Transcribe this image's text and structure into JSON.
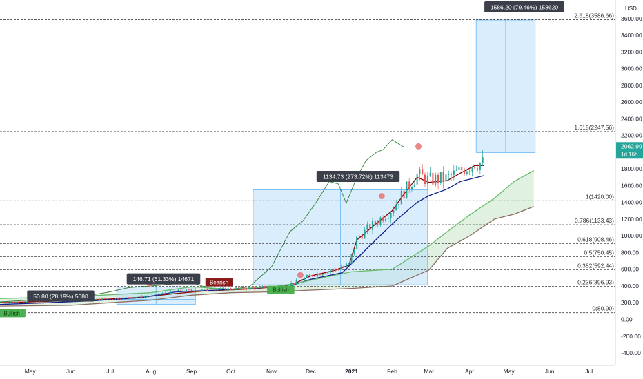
{
  "currency": "USD",
  "last_price": "2062.99",
  "countdown": "1d 16h",
  "colors": {
    "up": "#26a69a",
    "down": "#ef5350",
    "kijun": "#8b0000",
    "tenkan": "#0d1f8c",
    "lagging": "#2e7d32",
    "cloud": "#c8e6c9",
    "spanA": "#66bb6a",
    "spanB": "#8d6e63",
    "fib": "#444444",
    "range_fill": "#bbdefb",
    "range_line": "#64b5f6",
    "price_line": "#26a69a"
  },
  "chart_data": {
    "type": "candlestick",
    "y_ticks": [
      "3600.00",
      "3400.00",
      "3200.00",
      "3000.00",
      "2800.00",
      "2600.00",
      "2400.00",
      "2200.00",
      "2000.00",
      "1800.00",
      "1600.00",
      "1400.00",
      "1200.00",
      "1000.00",
      "800.00",
      "600.00",
      "400.00",
      "200.00",
      "0.00",
      "-200.00",
      "-400.00"
    ],
    "ylim": [
      -500,
      3800
    ],
    "x_ticks": [
      "May",
      "Jun",
      "Jul",
      "Aug",
      "Sep",
      "Oct",
      "Nov",
      "Dec",
      "2021",
      "Feb",
      "Mar",
      "Apr",
      "May",
      "Jun",
      "Jul"
    ],
    "x_tick_dates": [
      "2020-05-01",
      "2020-06-01",
      "2020-07-01",
      "2020-08-01",
      "2020-09-01",
      "2020-10-01",
      "2020-11-01",
      "2020-12-01",
      "2021-01-01",
      "2021-02-01",
      "2021-03-01",
      "2021-04-01",
      "2021-05-01",
      "2021-06-01",
      "2021-07-01"
    ],
    "xlim": [
      "2020-04-08",
      "2021-07-18"
    ],
    "fib_levels": [
      {
        "label": "2.618(3586.66)",
        "value": 3586.66
      },
      {
        "label": "1.618(2247.56)",
        "value": 2247.56
      },
      {
        "label": "1(1420.00)",
        "value": 1420.0
      },
      {
        "label": "0.786(1133.43)",
        "value": 1133.43
      },
      {
        "label": "0.618(908.46)",
        "value": 908.46
      },
      {
        "label": "0.5(750.45)",
        "value": 750.45
      },
      {
        "label": "0.382(592.44)",
        "value": 592.44
      },
      {
        "label": "0.236(396.93)",
        "value": 396.93
      },
      {
        "label": "0(80.90)",
        "value": 80.9
      }
    ],
    "price_ranges": [
      {
        "label": "50.80 (28.19%) 5080",
        "start": "2020-07-06",
        "end": "2020-09-04",
        "low": 180,
        "high": 231
      },
      {
        "label": "146.71 (61.33%) 14671",
        "start": "2020-07-06",
        "end": "2020-09-04",
        "low": 239,
        "high": 386
      },
      {
        "label": "1134.73 (273.72%) 113473",
        "start": "2020-10-18",
        "end": "2021-02-28",
        "low": 415,
        "high": 1550
      },
      {
        "label": "1586.20 (79.46%) 158620",
        "start": "2021-04-06",
        "end": "2021-05-21",
        "low": 1996,
        "high": 3582
      }
    ],
    "signals": [
      {
        "label": "Bullish",
        "date": "2020-04-17",
        "value": 75,
        "kind": "bull"
      },
      {
        "label": "Bearish",
        "date": "2020-09-22",
        "value": 445,
        "kind": "bear"
      },
      {
        "label": "Bullish",
        "date": "2020-11-08",
        "value": 355,
        "kind": "bull"
      }
    ],
    "markers": [
      {
        "date": "2020-07-31",
        "value": 430
      },
      {
        "date": "2020-11-23",
        "value": 530
      },
      {
        "date": "2021-01-24",
        "value": 1475
      },
      {
        "date": "2021-02-21",
        "value": 2070
      }
    ],
    "series": [
      {
        "key": "kijun",
        "points": [
          [
            "2020-04-08",
            200
          ],
          [
            "2020-05-15",
            215
          ],
          [
            "2020-06-20",
            235
          ],
          [
            "2020-07-25",
            265
          ],
          [
            "2020-08-20",
            310
          ],
          [
            "2020-09-10",
            340
          ],
          [
            "2020-10-10",
            360
          ],
          [
            "2020-11-08",
            390
          ],
          [
            "2020-11-20",
            440
          ],
          [
            "2020-12-01",
            520
          ],
          [
            "2020-12-20",
            590
          ],
          [
            "2020-12-30",
            650
          ],
          [
            "2021-01-05",
            950
          ],
          [
            "2021-01-20",
            1150
          ],
          [
            "2021-02-01",
            1300
          ],
          [
            "2021-02-10",
            1500
          ],
          [
            "2021-02-20",
            1700
          ],
          [
            "2021-03-01",
            1640
          ],
          [
            "2021-03-15",
            1660
          ],
          [
            "2021-03-25",
            1750
          ],
          [
            "2021-04-05",
            1840
          ],
          [
            "2021-04-12",
            1840
          ]
        ]
      },
      {
        "key": "tenkan",
        "points": [
          [
            "2020-04-08",
            180
          ],
          [
            "2020-05-15",
            200
          ],
          [
            "2020-06-20",
            225
          ],
          [
            "2020-07-25",
            260
          ],
          [
            "2020-08-20",
            330
          ],
          [
            "2020-09-20",
            350
          ],
          [
            "2020-10-20",
            375
          ],
          [
            "2020-11-15",
            400
          ],
          [
            "2020-12-01",
            480
          ],
          [
            "2020-12-25",
            560
          ],
          [
            "2021-01-05",
            730
          ],
          [
            "2021-01-20",
            960
          ],
          [
            "2021-02-05",
            1200
          ],
          [
            "2021-02-20",
            1400
          ],
          [
            "2021-03-01",
            1480
          ],
          [
            "2021-03-15",
            1560
          ],
          [
            "2021-03-25",
            1650
          ],
          [
            "2021-04-12",
            1720
          ]
        ]
      },
      {
        "key": "lagging",
        "points": [
          [
            "2020-04-08",
            210
          ],
          [
            "2020-05-01",
            230
          ],
          [
            "2020-06-01",
            250
          ],
          [
            "2020-07-01",
            330
          ],
          [
            "2020-07-15",
            380
          ],
          [
            "2020-08-01",
            400
          ],
          [
            "2020-08-15",
            420
          ],
          [
            "2020-09-01",
            440
          ],
          [
            "2020-09-15",
            370
          ],
          [
            "2020-10-01",
            360
          ],
          [
            "2020-10-15",
            390
          ],
          [
            "2020-11-01",
            630
          ],
          [
            "2020-11-15",
            1050
          ],
          [
            "2020-11-25",
            1180
          ],
          [
            "2020-12-05",
            1400
          ],
          [
            "2020-12-15",
            1650
          ],
          [
            "2020-12-22",
            1620
          ],
          [
            "2020-12-28",
            1390
          ],
          [
            "2021-01-05",
            1700
          ],
          [
            "2021-01-12",
            1900
          ],
          [
            "2021-01-20",
            2000
          ],
          [
            "2021-01-25",
            2030
          ],
          [
            "2021-02-01",
            2150
          ],
          [
            "2021-02-10",
            2060
          ]
        ]
      },
      {
        "key": "spanA",
        "points": [
          [
            "2020-04-08",
            250
          ],
          [
            "2020-06-01",
            270
          ],
          [
            "2020-07-01",
            295
          ],
          [
            "2020-08-01",
            320
          ],
          [
            "2020-09-01",
            390
          ],
          [
            "2020-10-01",
            360
          ],
          [
            "2020-11-01",
            390
          ],
          [
            "2020-11-20",
            430
          ],
          [
            "2020-12-10",
            500
          ],
          [
            "2021-01-01",
            570
          ],
          [
            "2021-02-01",
            600
          ],
          [
            "2021-03-01",
            880
          ],
          [
            "2021-03-15",
            1050
          ],
          [
            "2021-04-01",
            1250
          ],
          [
            "2021-04-20",
            1450
          ],
          [
            "2021-05-05",
            1650
          ],
          [
            "2021-05-20",
            1780
          ]
        ]
      },
      {
        "key": "spanB",
        "points": [
          [
            "2020-04-08",
            160
          ],
          [
            "2020-06-01",
            170
          ],
          [
            "2020-07-01",
            200
          ],
          [
            "2020-08-01",
            230
          ],
          [
            "2020-09-01",
            290
          ],
          [
            "2020-10-01",
            320
          ],
          [
            "2020-11-01",
            330
          ],
          [
            "2020-12-01",
            350
          ],
          [
            "2021-01-01",
            370
          ],
          [
            "2021-02-01",
            400
          ],
          [
            "2021-03-01",
            590
          ],
          [
            "2021-03-15",
            850
          ],
          [
            "2021-04-01",
            1000
          ],
          [
            "2021-04-20",
            1200
          ],
          [
            "2021-05-05",
            1260
          ],
          [
            "2021-05-20",
            1350
          ]
        ]
      }
    ]
  }
}
